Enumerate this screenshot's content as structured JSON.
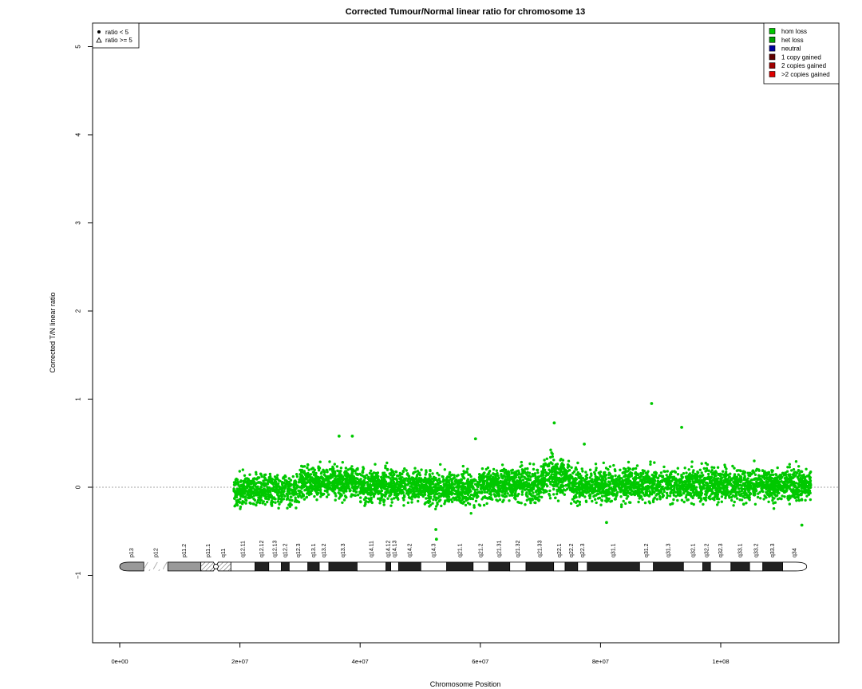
{
  "chart_data": {
    "type": "scatter",
    "title": "Corrected Tumour/Normal linear ratio for chromosome  13",
    "xlabel": "Chromosome Position",
    "ylabel": "Corrected T/N linear ratio",
    "xlim": [
      -2000000,
      120000000
    ],
    "ylim": [
      -1.75,
      5.25
    ],
    "x_ticks": [
      0,
      20000000,
      40000000,
      60000000,
      80000000,
      100000000
    ],
    "x_tick_labels": [
      "0e+00",
      "2e+07",
      "4e+07",
      "6e+07",
      "8e+07",
      "1e+08"
    ],
    "y_ticks": [
      -1,
      0,
      1,
      2,
      3,
      4,
      5
    ],
    "y_tick_labels": [
      "−1",
      "0",
      "1",
      "2",
      "3",
      "4",
      "5"
    ],
    "reference_line_y": 0,
    "point_color": "#00c800",
    "data_range_x": [
      19000000,
      115000000
    ],
    "regional_means": [
      {
        "x_start": 19000000,
        "x_end": 30000000,
        "mean": -0.03
      },
      {
        "x_start": 30000000,
        "x_end": 40000000,
        "mean": 0.06
      },
      {
        "x_start": 40000000,
        "x_end": 50000000,
        "mean": 0.02
      },
      {
        "x_start": 50000000,
        "x_end": 60000000,
        "mean": -0.01
      },
      {
        "x_start": 60000000,
        "x_end": 70000000,
        "mean": 0.03
      },
      {
        "x_start": 70000000,
        "x_end": 75000000,
        "mean": 0.12
      },
      {
        "x_start": 75000000,
        "x_end": 95000000,
        "mean": 0.03
      },
      {
        "x_start": 95000000,
        "x_end": 115000000,
        "mean": 0.03
      }
    ],
    "outliers": [
      {
        "x": 88500000,
        "y": 0.95
      },
      {
        "x": 93500000,
        "y": 0.68
      },
      {
        "x": 72300000,
        "y": 0.73
      },
      {
        "x": 59200000,
        "y": 0.55
      },
      {
        "x": 36500000,
        "y": 0.58
      },
      {
        "x": 38700000,
        "y": 0.58
      },
      {
        "x": 52700000,
        "y": -0.59
      },
      {
        "x": 52600000,
        "y": -0.48
      },
      {
        "x": 81000000,
        "y": -0.4
      },
      {
        "x": 113500000,
        "y": -0.43
      },
      {
        "x": 77300000,
        "y": 0.49
      }
    ],
    "legend_shapes": [
      {
        "symbol": "dot",
        "label": "ratio < 5"
      },
      {
        "symbol": "triangle",
        "label": "ratio >= 5"
      }
    ],
    "legend_shapes_position": "top-left",
    "legend_states": [
      {
        "label": "hom loss",
        "color": "#00c800"
      },
      {
        "label": "het loss",
        "color": "#00a000"
      },
      {
        "label": "neutral",
        "color": "#0000a0"
      },
      {
        "label": "1 copy gained",
        "color": "#600000"
      },
      {
        "label": "2 copies gained",
        "color": "#a00000"
      },
      {
        "label": ">2 copies gained",
        "color": "#e00000"
      }
    ],
    "legend_states_position": "top-right",
    "ideogram": {
      "y": -0.9,
      "bands": [
        {
          "name": "p13",
          "start": 0,
          "end": 4000000,
          "stain": "gpos"
        },
        {
          "name": "p12",
          "start": 4000000,
          "end": 8000000,
          "stain": "stalk"
        },
        {
          "name": "p11.2",
          "start": 8000000,
          "end": 13500000,
          "stain": "gpos"
        },
        {
          "name": "p11.1",
          "start": 13500000,
          "end": 16000000,
          "stain": "acen"
        },
        {
          "name": "q11",
          "start": 16000000,
          "end": 18500000,
          "stain": "acen"
        },
        {
          "name": "q12.11",
          "start": 18500000,
          "end": 22500000,
          "stain": "gneg"
        },
        {
          "name": "q12.12",
          "start": 22500000,
          "end": 24800000,
          "stain": "gpos"
        },
        {
          "name": "q12.13",
          "start": 24800000,
          "end": 26900000,
          "stain": "gneg"
        },
        {
          "name": "q12.2",
          "start": 26900000,
          "end": 28200000,
          "stain": "gpos"
        },
        {
          "name": "q12.3",
          "start": 28200000,
          "end": 31300000,
          "stain": "gneg"
        },
        {
          "name": "q13.1",
          "start": 31300000,
          "end": 33200000,
          "stain": "gpos"
        },
        {
          "name": "q13.2",
          "start": 33200000,
          "end": 34800000,
          "stain": "gneg"
        },
        {
          "name": "q13.3",
          "start": 34800000,
          "end": 39500000,
          "stain": "gpos"
        },
        {
          "name": "q14.11",
          "start": 39500000,
          "end": 44300000,
          "stain": "gneg"
        },
        {
          "name": "q14.12",
          "start": 44300000,
          "end": 45100000,
          "stain": "gpos"
        },
        {
          "name": "q14.13",
          "start": 45100000,
          "end": 46400000,
          "stain": "gneg"
        },
        {
          "name": "q14.2",
          "start": 46400000,
          "end": 50100000,
          "stain": "gpos"
        },
        {
          "name": "q14.3",
          "start": 50100000,
          "end": 54400000,
          "stain": "gneg"
        },
        {
          "name": "q21.1",
          "start": 54400000,
          "end": 58800000,
          "stain": "gpos"
        },
        {
          "name": "q21.2",
          "start": 58800000,
          "end": 61400000,
          "stain": "gneg"
        },
        {
          "name": "q21.31",
          "start": 61400000,
          "end": 64900000,
          "stain": "gpos"
        },
        {
          "name": "q21.32",
          "start": 64900000,
          "end": 67600000,
          "stain": "gneg"
        },
        {
          "name": "q21.33",
          "start": 67600000,
          "end": 72200000,
          "stain": "gpos"
        },
        {
          "name": "q22.1",
          "start": 72200000,
          "end": 74100000,
          "stain": "gneg"
        },
        {
          "name": "q22.2",
          "start": 74100000,
          "end": 76200000,
          "stain": "gpos"
        },
        {
          "name": "q22.3",
          "start": 76200000,
          "end": 77800000,
          "stain": "gneg"
        },
        {
          "name": "q31.1",
          "start": 77800000,
          "end": 86500000,
          "stain": "gpos"
        },
        {
          "name": "q31.2",
          "start": 86500000,
          "end": 88800000,
          "stain": "gneg"
        },
        {
          "name": "q31.3",
          "start": 88800000,
          "end": 93800000,
          "stain": "gpos"
        },
        {
          "name": "q32.1",
          "start": 93800000,
          "end": 97000000,
          "stain": "gneg"
        },
        {
          "name": "q32.2",
          "start": 97000000,
          "end": 98300000,
          "stain": "gpos"
        },
        {
          "name": "q32.3",
          "start": 98300000,
          "end": 101700000,
          "stain": "gneg"
        },
        {
          "name": "q33.1",
          "start": 101700000,
          "end": 104800000,
          "stain": "gpos"
        },
        {
          "name": "q33.2",
          "start": 104800000,
          "end": 107000000,
          "stain": "gneg"
        },
        {
          "name": "q33.3",
          "start": 107000000,
          "end": 110300000,
          "stain": "gpos"
        },
        {
          "name": "q34",
          "start": 110300000,
          "end": 114300000,
          "stain": "gneg"
        }
      ]
    }
  }
}
